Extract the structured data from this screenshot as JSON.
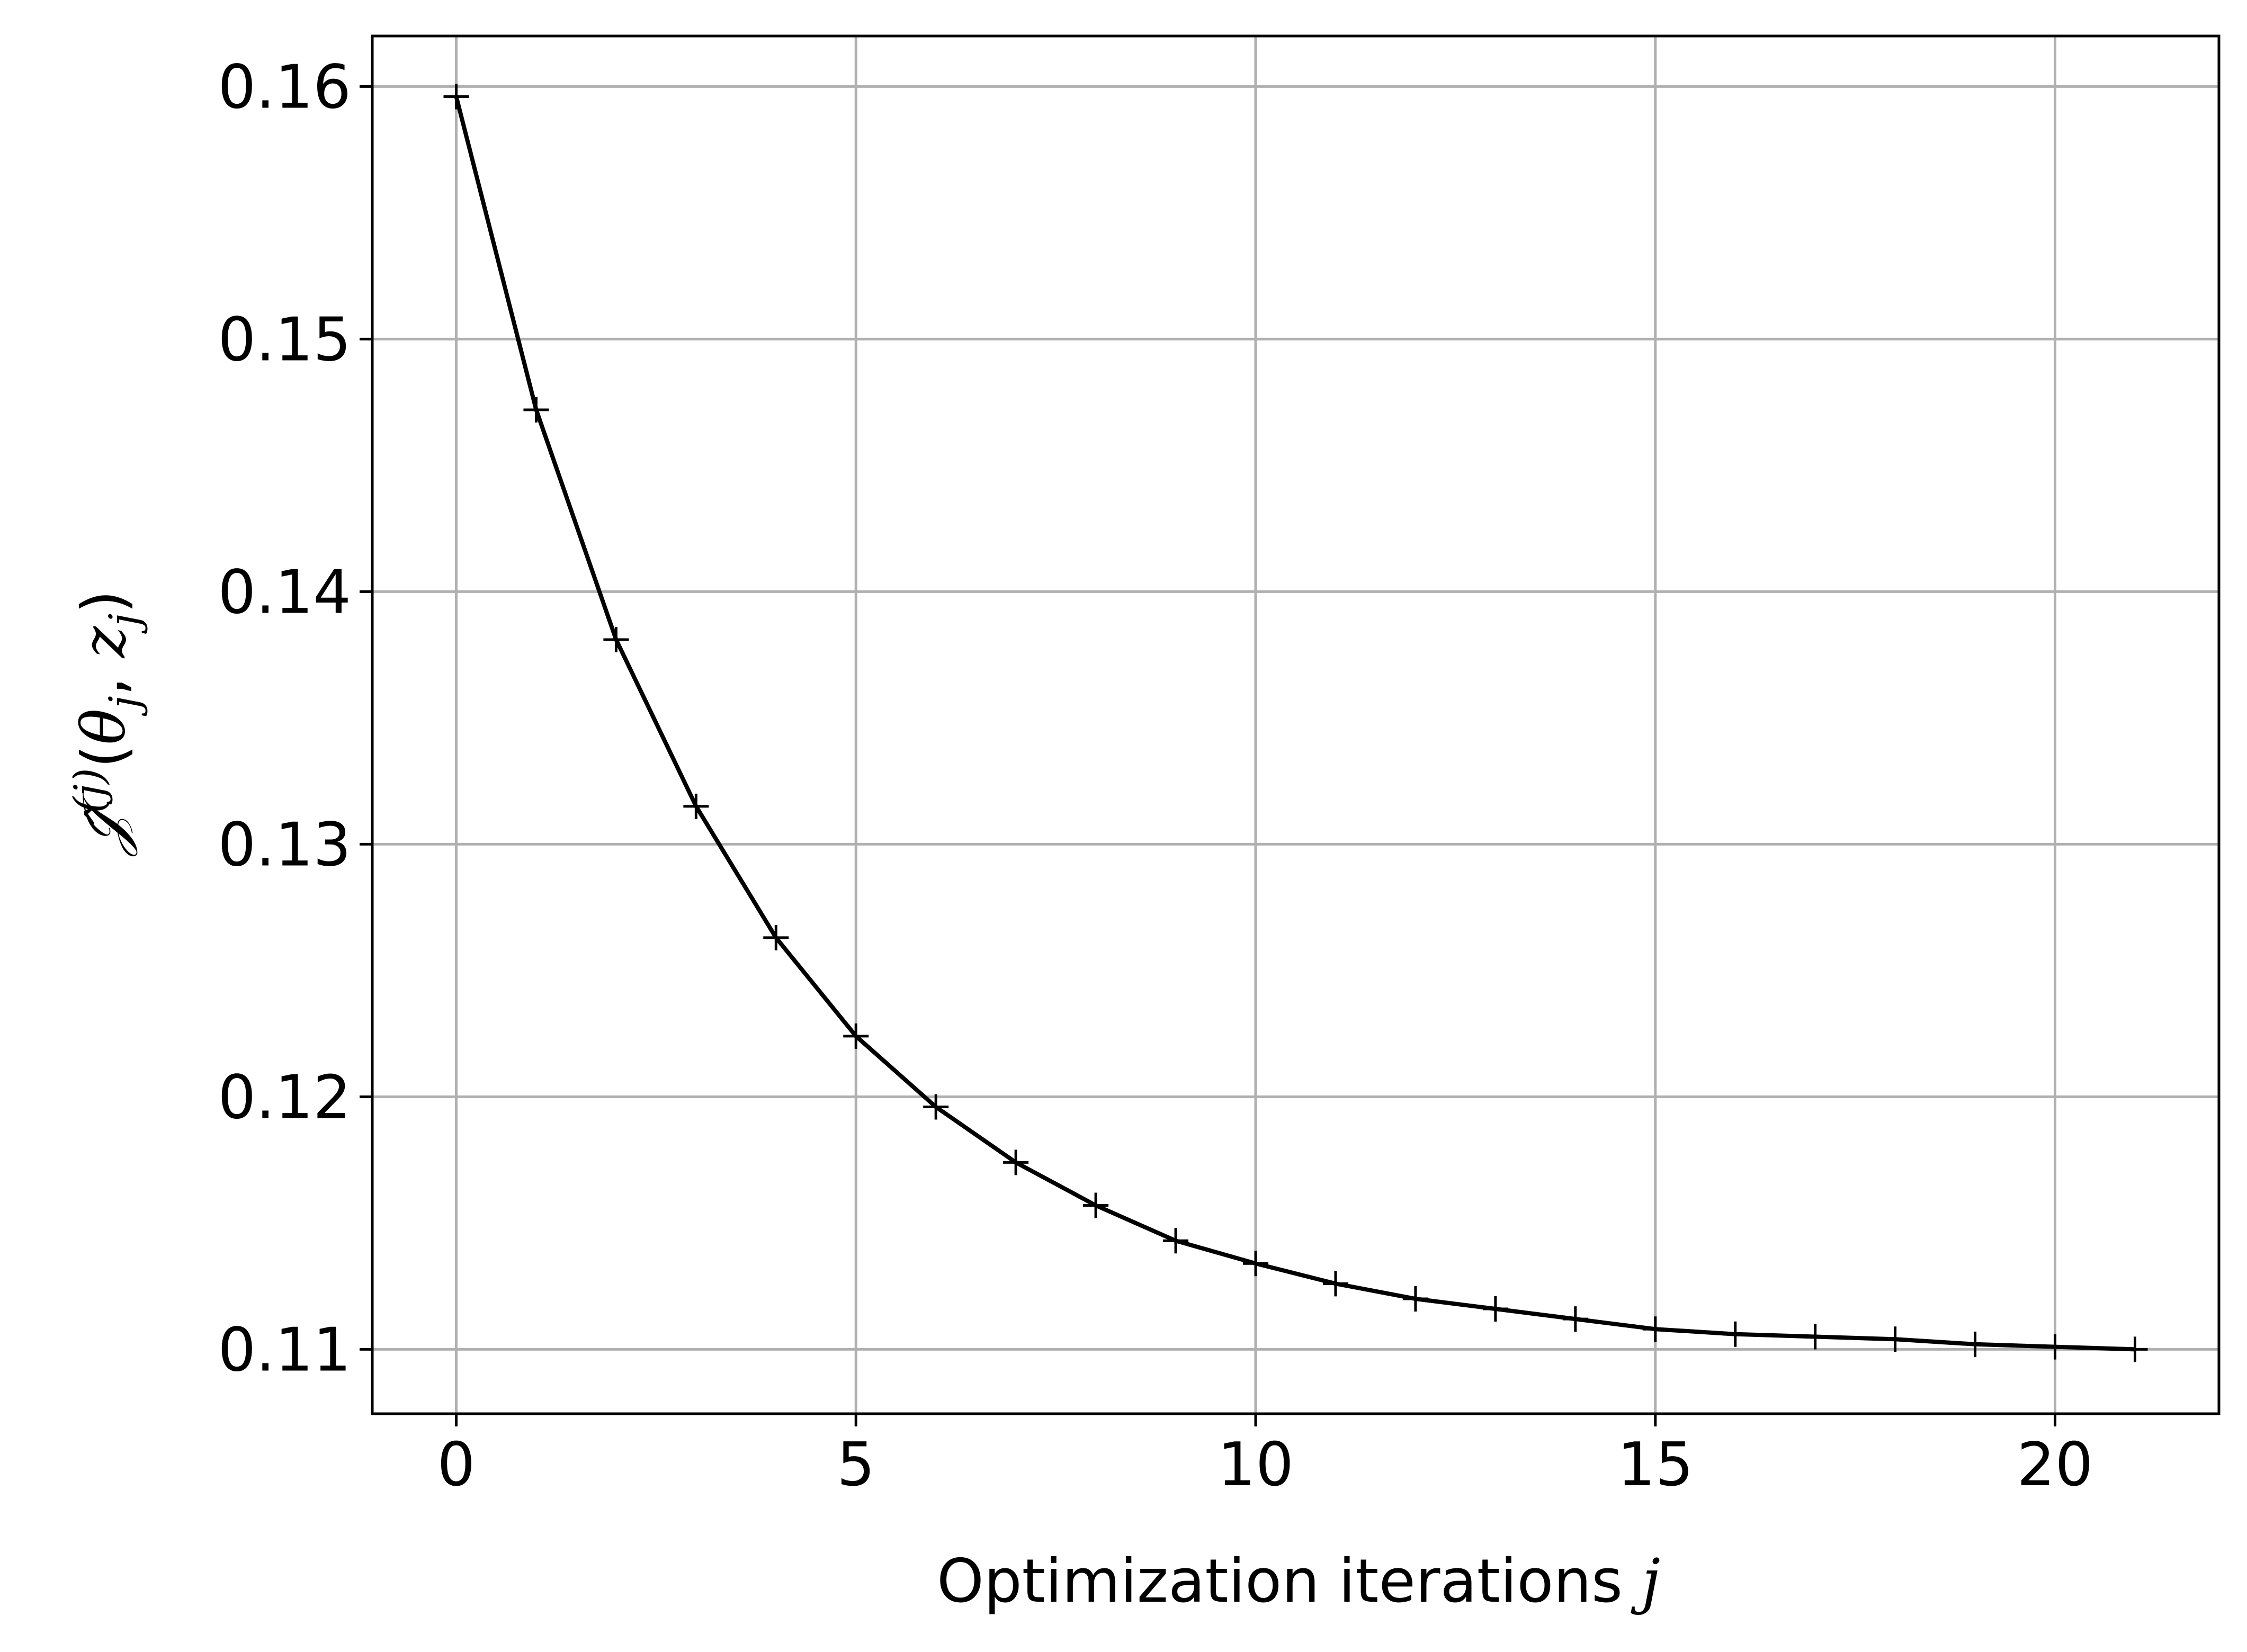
{
  "chart_data": {
    "type": "line",
    "xlabel": "Optimization iterations",
    "xlabel_var": "j",
    "ylabel": "𝒥̂(j)(θj, zj)",
    "ylabel_parts": {
      "symbol": "𝒥̂",
      "superscript": "(j)",
      "open": "(",
      "theta": "θ",
      "theta_sub": "j",
      "sep": ", ",
      "z": "z",
      "z_sub": "j",
      "close": ")"
    },
    "xlim": [
      -1.05,
      22.05
    ],
    "ylim": [
      0.10745,
      0.162
    ],
    "xticks": [
      0,
      5,
      10,
      15,
      20
    ],
    "xtick_labels": [
      "0",
      "5",
      "10",
      "15",
      "20"
    ],
    "yticks": [
      0.11,
      0.12,
      0.13,
      0.14,
      0.15,
      0.16
    ],
    "ytick_labels": [
      "0.11",
      "0.12",
      "0.13",
      "0.14",
      "0.15",
      "0.16"
    ],
    "grid": true,
    "marker": "+",
    "line_color": "#000000",
    "grid_color": "#b0b0b0",
    "series": [
      {
        "x": [
          0,
          1,
          2,
          3,
          4,
          5,
          6,
          7,
          8,
          9,
          10,
          11,
          12,
          13,
          14,
          15,
          16,
          17,
          18,
          19,
          20,
          21
        ],
        "y": [
          0.1596,
          0.1472,
          0.1381,
          0.1315,
          0.1263,
          0.1224,
          0.1196,
          0.1174,
          0.1157,
          0.1143,
          0.1134,
          0.1126,
          0.112,
          0.1116,
          0.1112,
          0.1108,
          0.1106,
          0.1105,
          0.1104,
          0.1102,
          0.1101,
          0.11
        ]
      }
    ]
  }
}
